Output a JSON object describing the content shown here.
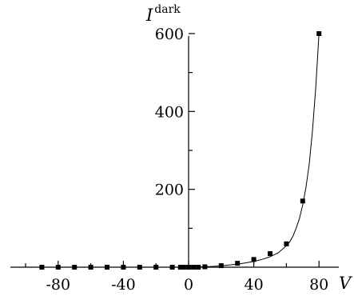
{
  "chart_data": {
    "type": "scatter",
    "title": "",
    "xlabel": "V",
    "ylabel": "I",
    "ylabel_superscript": "dark",
    "xlim": [
      -100,
      90
    ],
    "ylim": [
      0,
      650
    ],
    "x_ticks": [
      -80,
      -40,
      0,
      40,
      80
    ],
    "x_tick_labels": [
      "-80",
      "-40",
      "0",
      "40",
      "80"
    ],
    "y_ticks": [
      200,
      400,
      600
    ],
    "y_tick_labels": [
      "200",
      "400",
      "600"
    ],
    "grid": false,
    "legend": "none",
    "series": [
      {
        "marker": "square",
        "x": [
          -90,
          -80,
          -70,
          -60,
          -50,
          -40,
          -30,
          -20,
          -10,
          -5,
          -3,
          0,
          3,
          6,
          10,
          20,
          30,
          40,
          50,
          60,
          70,
          80
        ],
        "y": [
          0,
          0,
          0,
          0,
          0,
          0,
          0,
          0,
          0,
          0,
          0,
          0,
          0,
          0,
          1,
          4,
          10,
          20,
          35,
          60,
          170,
          600
        ]
      }
    ],
    "fit_curve": {
      "style": "line",
      "x": [
        0,
        5,
        10,
        15,
        20,
        25,
        30,
        35,
        40,
        45,
        50,
        55,
        60,
        62,
        64,
        66,
        68,
        70,
        72,
        74,
        76,
        78,
        80
      ],
      "y": [
        0,
        0.5,
        1,
        2,
        3.5,
        5.5,
        8,
        11,
        15,
        20,
        27,
        37,
        55,
        65,
        80,
        100,
        125,
        160,
        205,
        265,
        350,
        460,
        600
      ]
    }
  }
}
